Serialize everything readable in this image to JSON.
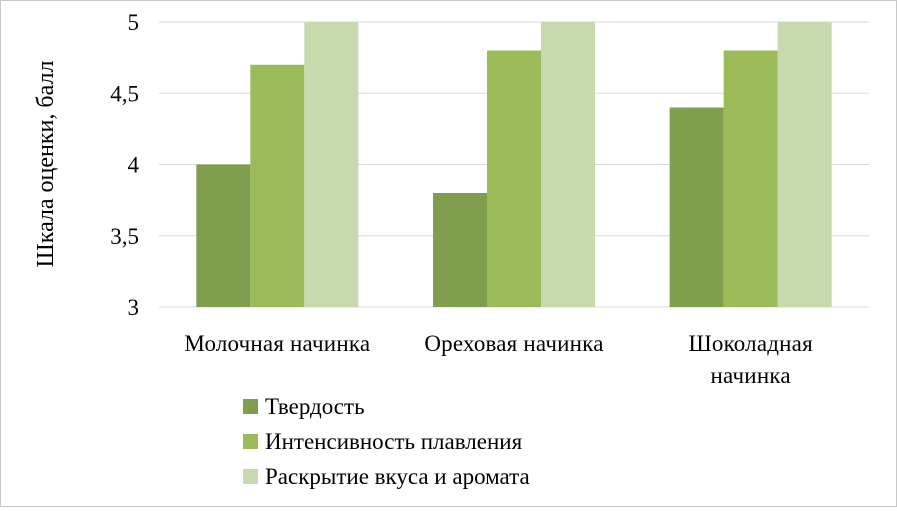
{
  "chart_data": {
    "type": "bar",
    "title": "",
    "xlabel": "",
    "ylabel": "Шкала оценки, балл",
    "ylim": [
      3,
      5
    ],
    "yticks": [
      "3",
      "3,5",
      "4",
      "4,5",
      "5"
    ],
    "categories": [
      [
        "Молочная начинка"
      ],
      [
        "Ореховая начинка"
      ],
      [
        "Шоколадная",
        "начинка"
      ]
    ],
    "series": [
      {
        "name": "Твердость",
        "values": [
          4.0,
          3.8,
          4.4
        ],
        "color": "#7f9e4e"
      },
      {
        "name": "Интенсивность плавления",
        "values": [
          4.7,
          4.8,
          4.8
        ],
        "color": "#9bbb59"
      },
      {
        "name": "Раскрытие вкуса и аромата",
        "values": [
          5.0,
          5.0,
          5.0
        ],
        "color": "#c8d9ad"
      }
    ],
    "grid": true,
    "legend_position": "bottom-left"
  }
}
